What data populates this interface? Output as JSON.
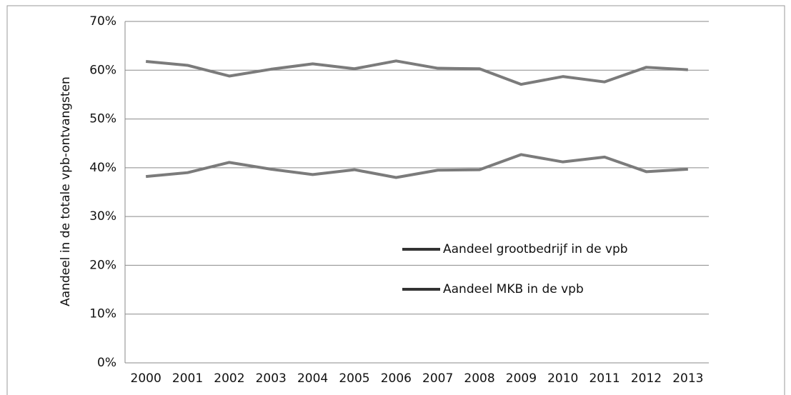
{
  "chart_data": {
    "type": "line",
    "y_label": "Aandeel in de totale vpb-ontvangsten",
    "categories": [
      "2000",
      "2001",
      "2002",
      "2003",
      "2004",
      "2005",
      "2006",
      "2007",
      "2008",
      "2009",
      "2010",
      "2011",
      "2012",
      "2013"
    ],
    "series": [
      {
        "name": "Aandeel grootbedrijf in de vpb",
        "color": "#7b7b7b",
        "values": [
          61.8,
          61.0,
          58.8,
          60.2,
          61.3,
          60.3,
          61.9,
          60.4,
          60.3,
          57.1,
          58.7,
          57.6,
          60.6,
          60.1
        ]
      },
      {
        "name": "Aandeel MKB in de vpb",
        "color": "#7b7b7b",
        "values": [
          38.2,
          39.0,
          41.1,
          39.7,
          38.6,
          39.6,
          38.0,
          39.5,
          39.6,
          42.7,
          41.2,
          42.2,
          39.2,
          39.7
        ]
      }
    ],
    "ylim": [
      0,
      70
    ],
    "yticks": [
      {
        "value": 0,
        "label": "0%"
      },
      {
        "value": 10,
        "label": "10%"
      },
      {
        "value": 20,
        "label": "20%"
      },
      {
        "value": 30,
        "label": "30%"
      },
      {
        "value": 40,
        "label": "40%"
      },
      {
        "value": 50,
        "label": "50%"
      },
      {
        "value": 60,
        "label": "60%"
      },
      {
        "value": 70,
        "label": "70%"
      }
    ],
    "grid": true
  }
}
